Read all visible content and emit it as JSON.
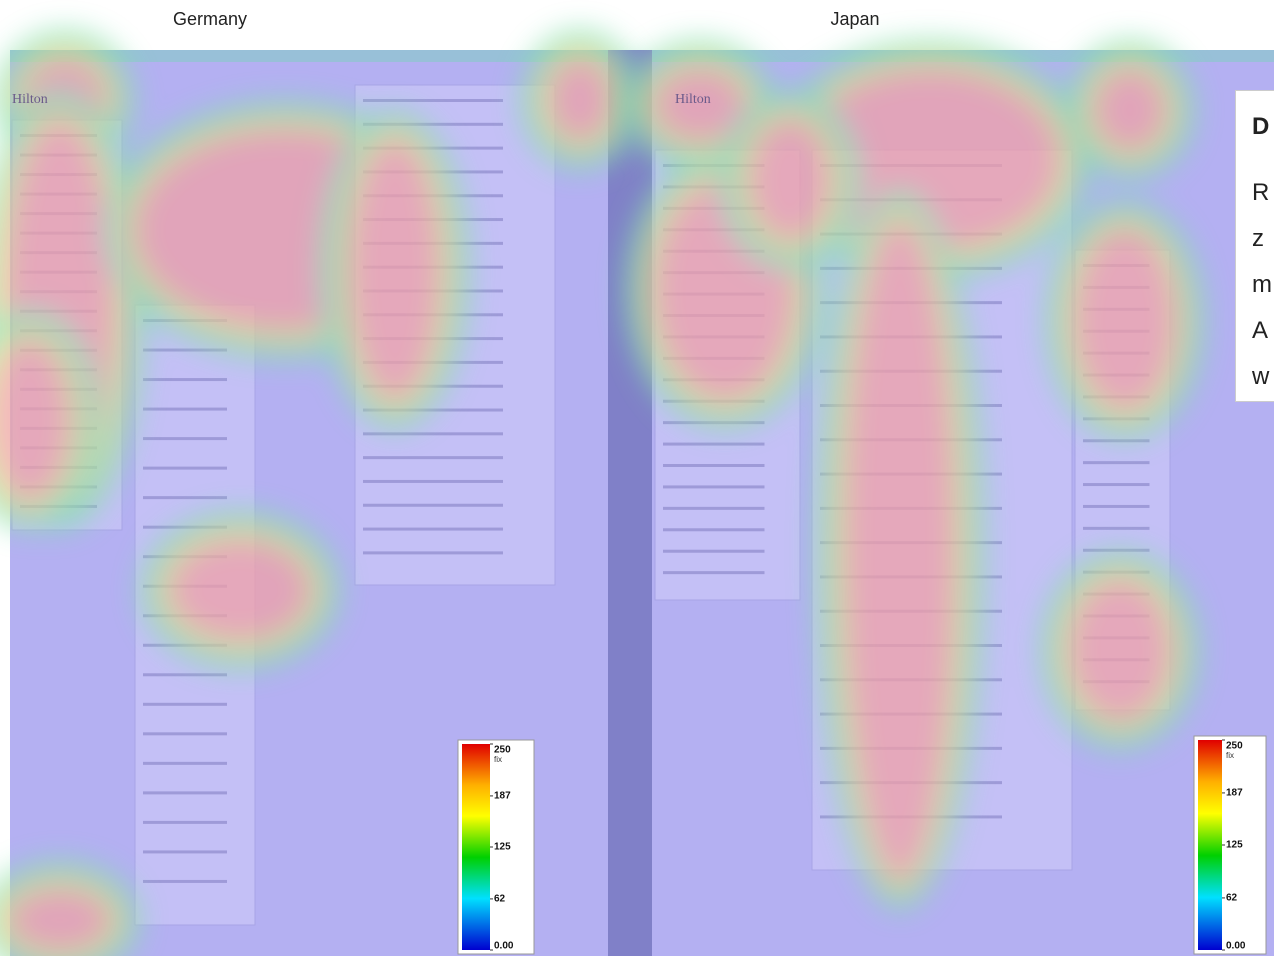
{
  "panels": [
    {
      "label": "Germany",
      "logo": "Hilton",
      "colorbar": {
        "ticks": [
          250,
          187,
          125,
          62,
          {
            "value": 0,
            "label": "0.00"
          }
        ],
        "unit": "fix"
      }
    },
    {
      "label": "Japan",
      "logo": "Hilton",
      "colorbar": {
        "ticks": [
          250,
          187,
          125,
          62,
          {
            "value": 0,
            "label": "0.00"
          }
        ],
        "unit": "fix"
      }
    }
  ],
  "side_note": {
    "heading": "D",
    "lines": [
      "R",
      "z",
      "m",
      "A",
      "w"
    ]
  }
}
